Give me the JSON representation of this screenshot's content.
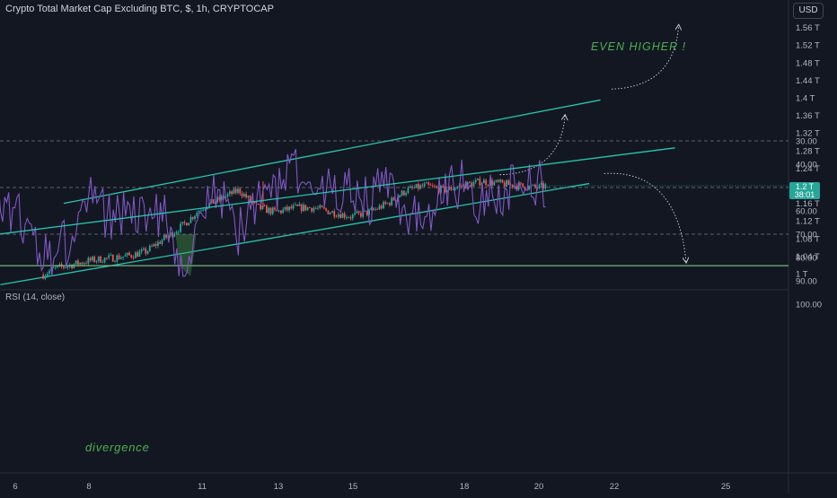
{
  "header": {
    "title": "Crypto Total Market Cap Excluding BTC, $, 1h, CRYPTOCAP",
    "currency_button": "USD",
    "last_price": "1.2 T",
    "countdown": "38:01"
  },
  "rsi_panel": {
    "title": "RSI (14, close)"
  },
  "annotations": {
    "top_text": "EVEN HIGHER !",
    "divergence_text": "divergence"
  },
  "colors": {
    "background": "#131722",
    "up_candle": "#26a69a",
    "down_candle": "#ef5350",
    "channel_line": "#26c6b0",
    "rsi_line": "#7e57c2",
    "rsi_band": "#2a2140",
    "horizontal_level": "#81c784",
    "annotation_text": "#4caf50"
  },
  "chart_data": [
    {
      "type": "candlestick",
      "title": "Crypto Total Market Cap Excluding BTC, $, 1h, CRYPTOCAP",
      "x_tick_labels": [
        "6",
        "8",
        "11",
        "13",
        "15",
        "18",
        "20",
        "22",
        "25"
      ],
      "y_tick_labels": [
        "1.56 T",
        "1.52 T",
        "1.48 T",
        "1.44 T",
        "1.4 T",
        "1.36 T",
        "1.32 T",
        "1.28 T",
        "1.24 T",
        "1.2 T",
        "1.16 T",
        "1.12 T",
        "1.08 T",
        "1.04 T",
        "1 T"
      ],
      "y_ticks": [
        1.56,
        1.52,
        1.48,
        1.44,
        1.4,
        1.36,
        1.32,
        1.28,
        1.24,
        1.2,
        1.16,
        1.12,
        1.08,
        1.04,
        1.0
      ],
      "ylim": [
        0.975,
        1.58
      ],
      "close_anchors": {
        "x": [
          6.0,
          6.5,
          7.0,
          7.5,
          8.0,
          8.5,
          9.0,
          9.5,
          10.0,
          10.5,
          11.0,
          11.5,
          12.0,
          12.5,
          13.0,
          13.5,
          14.0,
          14.5,
          15.0,
          15.5,
          16.0,
          16.5,
          17.0,
          17.5,
          18.0,
          18.5,
          19.0,
          19.5,
          20.0,
          20.25
        ],
        "close": [
          0.98,
          0.985,
          1.01,
          1.02,
          1.03,
          1.035,
          1.04,
          1.05,
          1.08,
          1.11,
          1.15,
          1.17,
          1.19,
          1.15,
          1.14,
          1.15,
          1.15,
          1.14,
          1.13,
          1.14,
          1.16,
          1.19,
          1.2,
          1.19,
          1.2,
          1.21,
          1.205,
          1.2,
          1.195,
          1.2
        ]
      },
      "last_price": 1.2,
      "channel_lines": [
        {
          "name": "upper",
          "x": [
            7.3,
            21.7
          ],
          "y": [
            1.16,
            1.395
          ]
        },
        {
          "name": "lower",
          "x": [
            5.6,
            21.4
          ],
          "y": [
            0.975,
            1.205
          ]
        }
      ],
      "projection_arrows": [
        {
          "x": [
            19.0,
            20.75
          ],
          "y": [
            1.225,
            1.36
          ]
        },
        {
          "x": [
            22.0,
            23.8
          ],
          "y": [
            1.42,
            1.565
          ]
        }
      ],
      "annotation": "EVEN HIGHER !"
    },
    {
      "type": "line",
      "title": "RSI (14, close)",
      "x_tick_labels": [
        "6",
        "8",
        "11",
        "13",
        "15",
        "18",
        "20",
        "22",
        "25"
      ],
      "y_tick_labels": [
        "100.00",
        "90.00",
        "80.00",
        "70.00",
        "60.00",
        "50.00",
        "40.00",
        "30.00"
      ],
      "y_ticks": [
        100,
        90,
        80,
        70,
        60,
        50,
        40,
        30
      ],
      "ylim": [
        28,
        103
      ],
      "band": [
        30,
        70
      ],
      "midline": 50,
      "horizontal_level": 83.5,
      "series_anchors": {
        "x": [
          5.55,
          6.0,
          6.5,
          7.0,
          7.5,
          8.0,
          8.5,
          9.0,
          9.5,
          10.0,
          10.5,
          11.0,
          11.5,
          12.0,
          12.5,
          13.0,
          13.5,
          14.0,
          14.5,
          15.0,
          15.5,
          16.0,
          16.5,
          17.0,
          17.5,
          18.0,
          18.5,
          19.0,
          19.5,
          20.0,
          20.25
        ],
        "y": [
          60,
          58,
          75,
          82,
          70,
          55,
          62,
          58,
          66,
          58,
          86,
          62,
          52,
          70,
          57,
          50,
          40,
          55,
          52,
          48,
          55,
          48,
          60,
          66,
          52,
          48,
          58,
          52,
          50,
          47,
          48
        ]
      },
      "trendline": {
        "x": [
          5.55,
          23.7
        ],
        "y": [
          70,
          33
        ]
      },
      "projection_arrow": {
        "x": [
          21.8,
          24.0
        ],
        "y": [
          44,
          82
        ]
      },
      "annotation": "divergence"
    }
  ]
}
